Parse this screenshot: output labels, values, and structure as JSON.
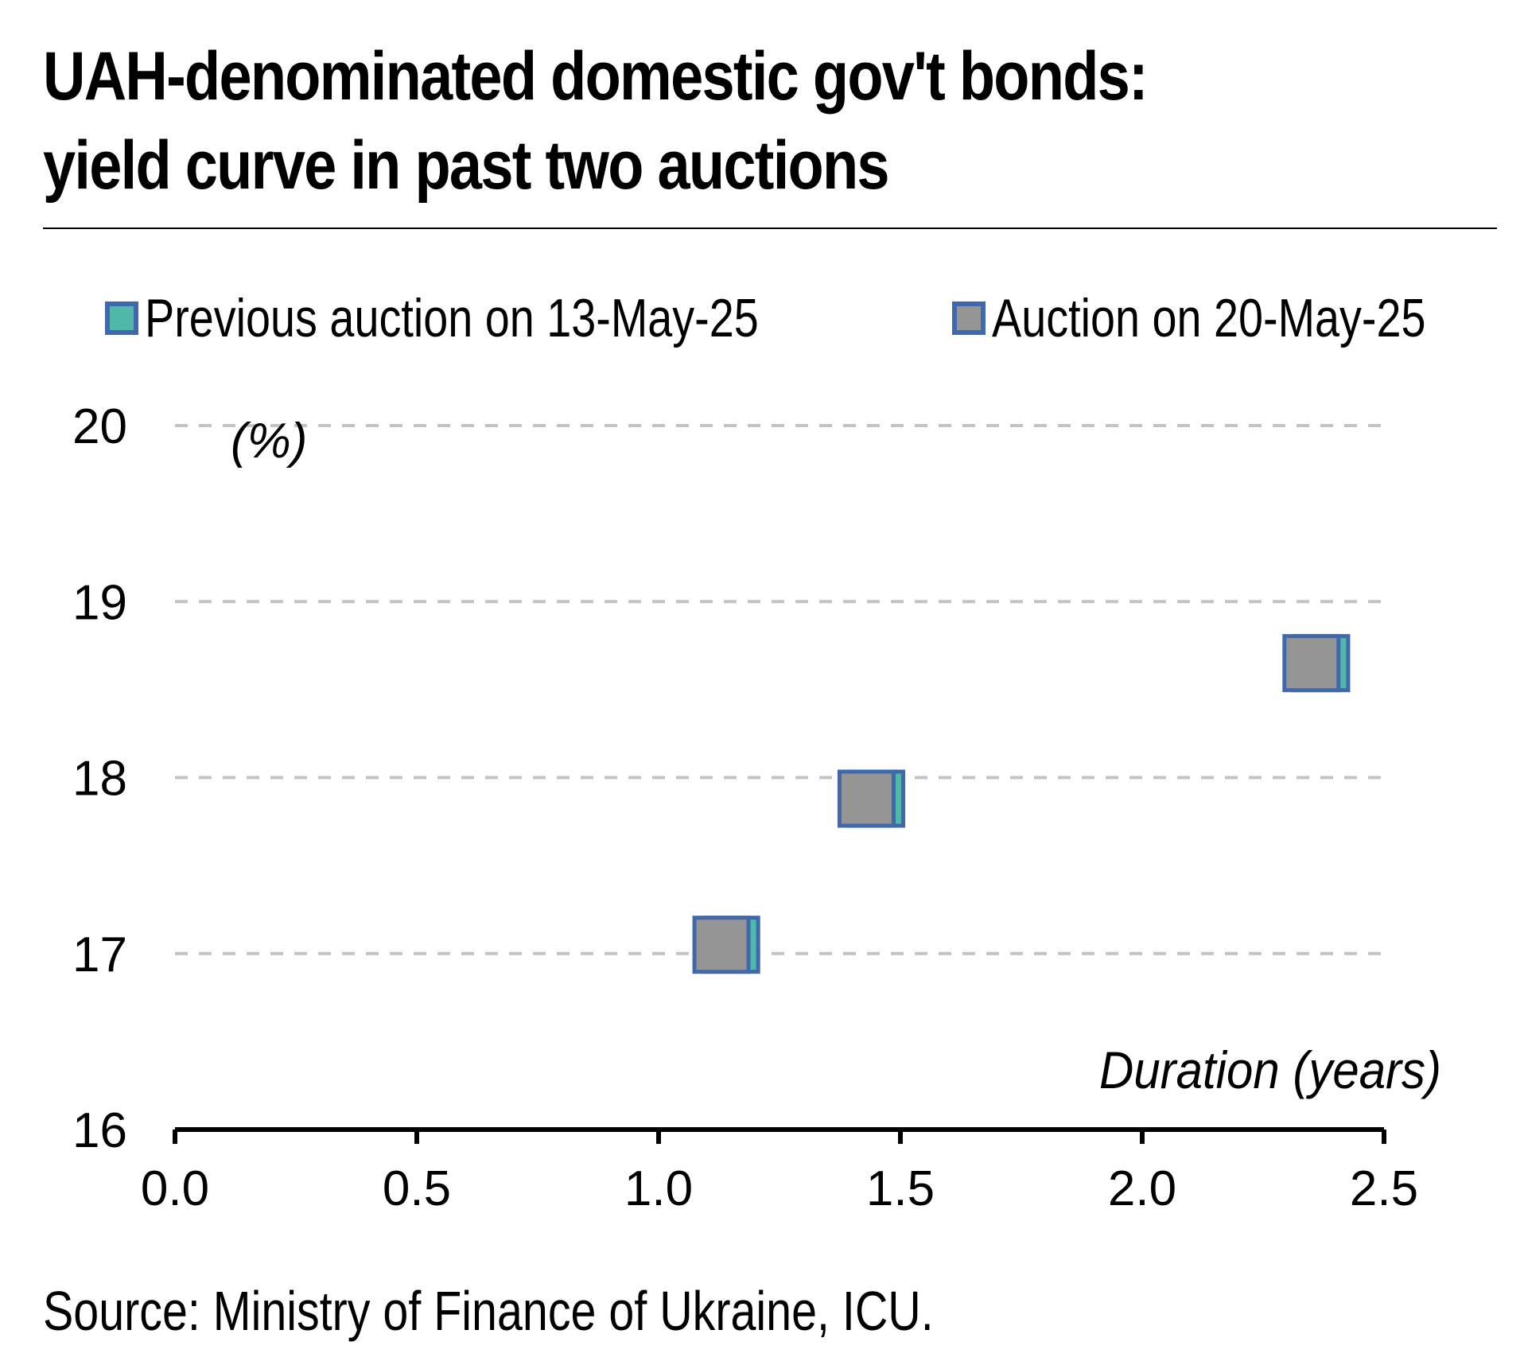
{
  "title_lines": [
    "UAH-denominated domestic gov't bonds:",
    "yield curve in past two auctions"
  ],
  "source": "Source: Ministry of Finance of Ukraine, ICU.",
  "chart_data": {
    "type": "scatter",
    "title": "UAH-denominated domestic gov't bonds: yield curve in past two auctions",
    "ylabel": "(%)",
    "xlabel": "Duration (years)",
    "xlim": [
      0,
      2.5
    ],
    "ylim": [
      16,
      20
    ],
    "xticks": [
      "0.0",
      "0.5",
      "1.0",
      "1.5",
      "2.0",
      "2.5"
    ],
    "yticks": [
      "16",
      "17",
      "18",
      "19",
      "20"
    ],
    "grid": "horizontal dashed",
    "legend_position": "top",
    "series": [
      {
        "name": "Previous auction on 13-May-25",
        "color": "#4fb8a9",
        "border": "#3f68ad",
        "points": [
          {
            "x": 1.15,
            "y": 17.05
          },
          {
            "x": 1.45,
            "y": 17.88
          },
          {
            "x": 2.37,
            "y": 18.65
          }
        ]
      },
      {
        "name": "Auction on 20-May-25",
        "color": "#959595",
        "border": "#3f68ad",
        "points": [
          {
            "x": 1.13,
            "y": 17.05
          },
          {
            "x": 1.43,
            "y": 17.88
          },
          {
            "x": 2.35,
            "y": 18.65
          }
        ]
      }
    ]
  }
}
